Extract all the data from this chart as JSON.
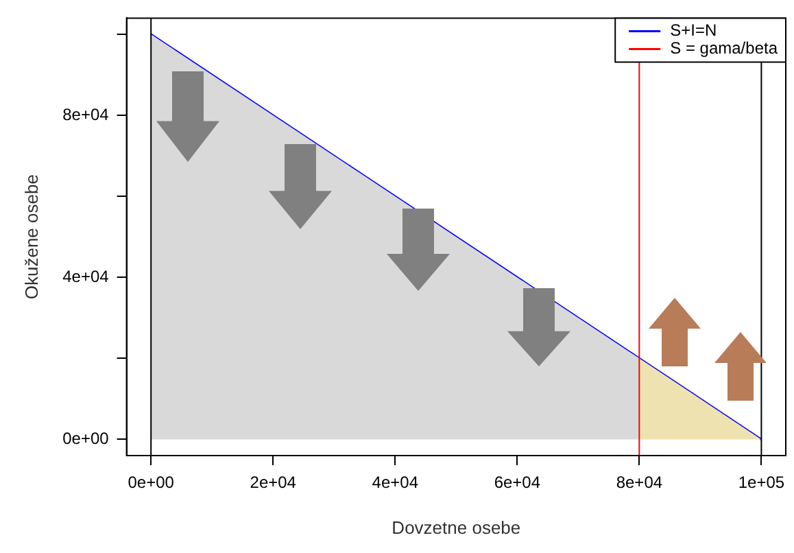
{
  "chart_data": {
    "type": "line",
    "xlabel": "Dovzetne osebe",
    "ylabel": "Okužene osebe",
    "xlim": [
      -4000,
      104000
    ],
    "ylim": [
      -4000,
      104000
    ],
    "xticks": [
      {
        "value": 0,
        "label": "0e+00"
      },
      {
        "value": 20000,
        "label": "2e+04"
      },
      {
        "value": 40000,
        "label": "4e+04"
      },
      {
        "value": 60000,
        "label": "6e+04"
      },
      {
        "value": 80000,
        "label": "8e+04"
      },
      {
        "value": 100000,
        "label": "1e+05"
      }
    ],
    "yticks": [
      {
        "value": 0,
        "label": "0e+00"
      },
      {
        "value": 20000,
        "label": null
      },
      {
        "value": 40000,
        "label": "4e+04"
      },
      {
        "value": 60000,
        "label": null
      },
      {
        "value": 80000,
        "label": "8e+04"
      },
      {
        "value": 100000,
        "label": null
      }
    ],
    "series": [
      {
        "type": "area",
        "color": "#d9d9d9",
        "x": [
          0,
          80000
        ],
        "values": [
          100000,
          20000
        ]
      },
      {
        "type": "area",
        "color": "#eee3b0",
        "x": [
          80000,
          100000
        ],
        "values": [
          20000,
          0
        ]
      },
      {
        "type": "line",
        "name": "S+I=N",
        "color": "#0000ff",
        "x": [
          0,
          100000
        ],
        "values": [
          100000,
          0
        ]
      }
    ],
    "ref_lines": [
      {
        "axis": "x",
        "value": 0,
        "color": "#000000"
      },
      {
        "axis": "x",
        "value": 100000,
        "color": "#000000"
      },
      {
        "axis": "x",
        "value": 80000,
        "label": "S = gama/beta",
        "color": "#ff0000"
      }
    ],
    "grid": false,
    "legend": "top right",
    "marker": "none",
    "line_style": "solid"
  }
}
